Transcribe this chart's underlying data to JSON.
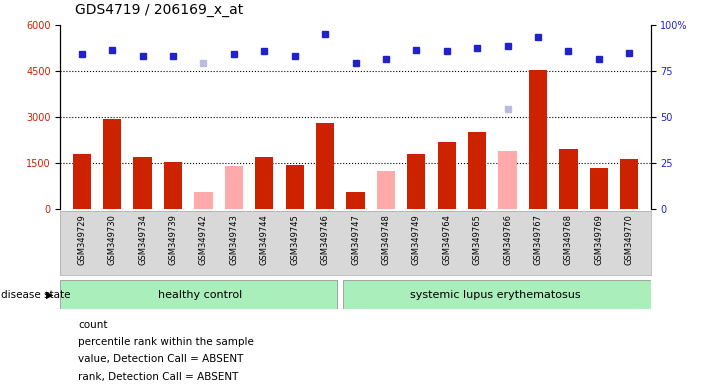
{
  "title": "GDS4719 / 206169_x_at",
  "samples": [
    "GSM349729",
    "GSM349730",
    "GSM349734",
    "GSM349739",
    "GSM349742",
    "GSM349743",
    "GSM349744",
    "GSM349745",
    "GSM349746",
    "GSM349747",
    "GSM349748",
    "GSM349749",
    "GSM349764",
    "GSM349765",
    "GSM349766",
    "GSM349767",
    "GSM349768",
    "GSM349769",
    "GSM349770"
  ],
  "count_values": [
    1800,
    2950,
    1700,
    1550,
    null,
    null,
    1700,
    1450,
    2800,
    550,
    null,
    1800,
    2200,
    2500,
    null,
    4550,
    1950,
    1350,
    1650
  ],
  "count_absent_values": [
    null,
    null,
    null,
    null,
    550,
    1400,
    null,
    null,
    null,
    null,
    1250,
    null,
    null,
    null,
    1900,
    null,
    null,
    null,
    null
  ],
  "rank_values": [
    5050,
    5200,
    5000,
    5000,
    null,
    5050,
    5150,
    5000,
    5700,
    4750,
    4900,
    5200,
    5150,
    5250,
    5300,
    5600,
    5150,
    4900,
    5100
  ],
  "rank_absent_values": [
    null,
    null,
    null,
    null,
    4750,
    null,
    null,
    null,
    null,
    null,
    null,
    null,
    null,
    null,
    3250,
    null,
    null,
    null,
    null
  ],
  "ylim_left": [
    0,
    6000
  ],
  "ylim_right": [
    0,
    100
  ],
  "yticks_left": [
    0,
    1500,
    3000,
    4500,
    6000
  ],
  "ytick_labels_left": [
    "0",
    "1500",
    "3000",
    "4500",
    "6000"
  ],
  "yticks_right": [
    0,
    25,
    50,
    75,
    100
  ],
  "ytick_labels_right": [
    "0",
    "25",
    "50",
    "75",
    "100%"
  ],
  "hgrid_lines": [
    1500,
    3000,
    4500
  ],
  "healthy_count": 9,
  "total_count": 19,
  "group_label_healthy": "healthy control",
  "group_label_sle": "systemic lupus erythematosus",
  "disease_state_label": "disease state",
  "legend_items": [
    "count",
    "percentile rank within the sample",
    "value, Detection Call = ABSENT",
    "rank, Detection Call = ABSENT"
  ],
  "legend_colors": [
    "#cc2200",
    "#2222cc",
    "#ffaaaa",
    "#bbbbdd"
  ],
  "bar_color_present": "#cc2200",
  "bar_color_absent": "#ffaaaa",
  "dot_color_present": "#2222cc",
  "dot_color_absent": "#bbbbdd",
  "healthy_bg": "#aaeebb",
  "sle_bg": "#aaeebb",
  "title_fontsize": 10,
  "tick_fontsize": 7
}
